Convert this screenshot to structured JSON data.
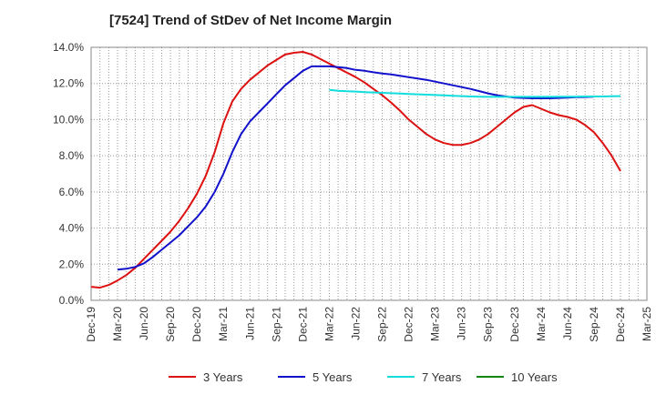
{
  "chart_data": {
    "type": "line",
    "title": "[7524]  Trend of StDev of Net Income Margin",
    "xlabel": "",
    "ylabel": "",
    "ylim": [
      0,
      14
    ],
    "y_ticks": [
      0,
      2,
      4,
      6,
      8,
      10,
      12,
      14
    ],
    "y_tick_labels": [
      "0.0%",
      "2.0%",
      "4.0%",
      "6.0%",
      "8.0%",
      "10.0%",
      "12.0%",
      "14.0%"
    ],
    "x_tick_labels": [
      "Dec-19",
      "Mar-20",
      "Jun-20",
      "Sep-20",
      "Dec-20",
      "Mar-21",
      "Jun-21",
      "Sep-21",
      "Dec-21",
      "Mar-22",
      "Jun-22",
      "Sep-22",
      "Dec-22",
      "Mar-23",
      "Jun-23",
      "Sep-23",
      "Dec-23",
      "Mar-24",
      "Jun-24",
      "Sep-24",
      "Dec-24",
      "Mar-25"
    ],
    "grid": true,
    "legend_position": "bottom",
    "series": [
      {
        "name": "3 Years",
        "color": "#dd1111",
        "points": [
          [
            "Dec-19",
            0.75
          ],
          [
            "Jan-20",
            0.7
          ],
          [
            "Feb-20",
            0.85
          ],
          [
            "Mar-20",
            1.1
          ],
          [
            "Apr-20",
            1.4
          ],
          [
            "May-20",
            1.8
          ],
          [
            "Jun-20",
            2.3
          ],
          [
            "Jul-20",
            2.8
          ],
          [
            "Aug-20",
            3.3
          ],
          [
            "Sep-20",
            3.8
          ],
          [
            "Oct-20",
            4.4
          ],
          [
            "Nov-20",
            5.1
          ],
          [
            "Dec-20",
            5.9
          ],
          [
            "Jan-21",
            6.9
          ],
          [
            "Feb-21",
            8.2
          ],
          [
            "Mar-21",
            9.8
          ],
          [
            "Apr-21",
            11.0
          ],
          [
            "May-21",
            11.7
          ],
          [
            "Jun-21",
            12.2
          ],
          [
            "Jul-21",
            12.6
          ],
          [
            "Aug-21",
            13.0
          ],
          [
            "Sep-21",
            13.3
          ],
          [
            "Oct-21",
            13.6
          ],
          [
            "Nov-21",
            13.7
          ],
          [
            "Dec-21",
            13.75
          ],
          [
            "Jan-22",
            13.6
          ],
          [
            "Feb-22",
            13.35
          ],
          [
            "Mar-22",
            13.1
          ],
          [
            "Apr-22",
            12.85
          ],
          [
            "May-22",
            12.6
          ],
          [
            "Jun-22",
            12.35
          ],
          [
            "Jul-22",
            12.05
          ],
          [
            "Aug-22",
            11.7
          ],
          [
            "Sep-22",
            11.35
          ],
          [
            "Oct-22",
            10.95
          ],
          [
            "Nov-22",
            10.5
          ],
          [
            "Dec-22",
            10.0
          ],
          [
            "Jan-23",
            9.6
          ],
          [
            "Feb-23",
            9.2
          ],
          [
            "Mar-23",
            8.9
          ],
          [
            "Apr-23",
            8.7
          ],
          [
            "May-23",
            8.6
          ],
          [
            "Jun-23",
            8.6
          ],
          [
            "Jul-23",
            8.7
          ],
          [
            "Aug-23",
            8.9
          ],
          [
            "Sep-23",
            9.2
          ],
          [
            "Oct-23",
            9.6
          ],
          [
            "Nov-23",
            10.0
          ],
          [
            "Dec-23",
            10.4
          ],
          [
            "Jan-24",
            10.7
          ],
          [
            "Feb-24",
            10.8
          ],
          [
            "Mar-24",
            10.6
          ],
          [
            "Apr-24",
            10.4
          ],
          [
            "May-24",
            10.25
          ],
          [
            "Jun-24",
            10.15
          ],
          [
            "Jul-24",
            10.0
          ],
          [
            "Aug-24",
            9.7
          ],
          [
            "Sep-24",
            9.3
          ],
          [
            "Oct-24",
            8.7
          ],
          [
            "Nov-24",
            8.0
          ],
          [
            "Dec-24",
            7.15
          ]
        ]
      },
      {
        "name": "5 Years",
        "color": "#1111cc",
        "points": [
          [
            "Dec-19",
            1.7
          ],
          [
            "Jan-20",
            1.75
          ],
          [
            "Feb-20",
            1.85
          ],
          [
            "Mar-20",
            2.05
          ],
          [
            "Apr-20",
            2.4
          ],
          [
            "May-20",
            2.8
          ],
          [
            "Jun-20",
            3.2
          ],
          [
            "Jul-20",
            3.6
          ],
          [
            "Aug-20",
            4.1
          ],
          [
            "Sep-20",
            4.6
          ],
          [
            "Oct-20",
            5.2
          ],
          [
            "Nov-20",
            6.0
          ],
          [
            "Dec-20",
            7.0
          ],
          [
            "Jan-21",
            8.2
          ],
          [
            "Feb-21",
            9.2
          ],
          [
            "Mar-21",
            9.9
          ],
          [
            "Apr-21",
            10.4
          ],
          [
            "May-21",
            10.9
          ],
          [
            "Jun-21",
            11.4
          ],
          [
            "Jul-21",
            11.9
          ],
          [
            "Aug-21",
            12.3
          ],
          [
            "Sep-21",
            12.7
          ],
          [
            "Oct-21",
            12.95
          ],
          [
            "Nov-21",
            12.95
          ],
          [
            "Dec-21",
            12.95
          ],
          [
            "Jan-22",
            12.9
          ],
          [
            "Feb-22",
            12.85
          ],
          [
            "Mar-22",
            12.75
          ],
          [
            "Apr-22",
            12.7
          ],
          [
            "May-22",
            12.62
          ],
          [
            "Jun-22",
            12.55
          ],
          [
            "Jul-22",
            12.5
          ],
          [
            "Aug-22",
            12.43
          ],
          [
            "Sep-22",
            12.35
          ],
          [
            "Oct-22",
            12.28
          ],
          [
            "Nov-22",
            12.2
          ],
          [
            "Dec-22",
            12.1
          ],
          [
            "Jan-23",
            12.0
          ],
          [
            "Feb-23",
            11.9
          ],
          [
            "Mar-23",
            11.8
          ],
          [
            "Apr-23",
            11.7
          ],
          [
            "May-23",
            11.58
          ],
          [
            "Jun-23",
            11.45
          ],
          [
            "Jul-23",
            11.35
          ],
          [
            "Aug-23",
            11.28
          ],
          [
            "Sep-23",
            11.22
          ],
          [
            "Oct-23",
            11.2
          ],
          [
            "Nov-23",
            11.18
          ],
          [
            "Dec-23",
            11.18
          ],
          [
            "Jan-24",
            11.18
          ],
          [
            "Feb-24",
            11.2
          ],
          [
            "Mar-24",
            11.22
          ],
          [
            "Apr-24",
            11.24
          ],
          [
            "May-24",
            11.25
          ],
          [
            "Jun-24",
            11.27
          ]
        ],
        "points_offset_months": 3
      },
      {
        "name": "7 Years",
        "color": "#11dddd",
        "points": [
          [
            "Mar-22",
            11.65
          ],
          [
            "Apr-22",
            11.6
          ],
          [
            "May-22",
            11.57
          ],
          [
            "Jun-22",
            11.55
          ],
          [
            "Jul-22",
            11.52
          ],
          [
            "Aug-22",
            11.5
          ],
          [
            "Sep-22",
            11.48
          ],
          [
            "Oct-22",
            11.46
          ],
          [
            "Nov-22",
            11.44
          ],
          [
            "Dec-22",
            11.42
          ],
          [
            "Jan-23",
            11.4
          ],
          [
            "Feb-23",
            11.38
          ],
          [
            "Mar-23",
            11.36
          ],
          [
            "Apr-23",
            11.34
          ],
          [
            "May-23",
            11.32
          ],
          [
            "Jun-23",
            11.3
          ],
          [
            "Jul-23",
            11.28
          ],
          [
            "Aug-23",
            11.27
          ],
          [
            "Sep-23",
            11.26
          ],
          [
            "Oct-23",
            11.26
          ],
          [
            "Nov-23",
            11.26
          ],
          [
            "Dec-23",
            11.26
          ],
          [
            "Jan-24",
            11.26
          ],
          [
            "Feb-24",
            11.26
          ],
          [
            "Mar-24",
            11.26
          ],
          [
            "Apr-24",
            11.26
          ],
          [
            "May-24",
            11.27
          ],
          [
            "Jun-24",
            11.27
          ],
          [
            "Jul-24",
            11.27
          ],
          [
            "Aug-24",
            11.28
          ],
          [
            "Sep-24",
            11.28
          ],
          [
            "Oct-24",
            11.28
          ],
          [
            "Nov-24",
            11.29
          ],
          [
            "Dec-24",
            11.3
          ]
        ]
      },
      {
        "name": "10 Years",
        "color": "#118811",
        "points": []
      }
    ]
  }
}
